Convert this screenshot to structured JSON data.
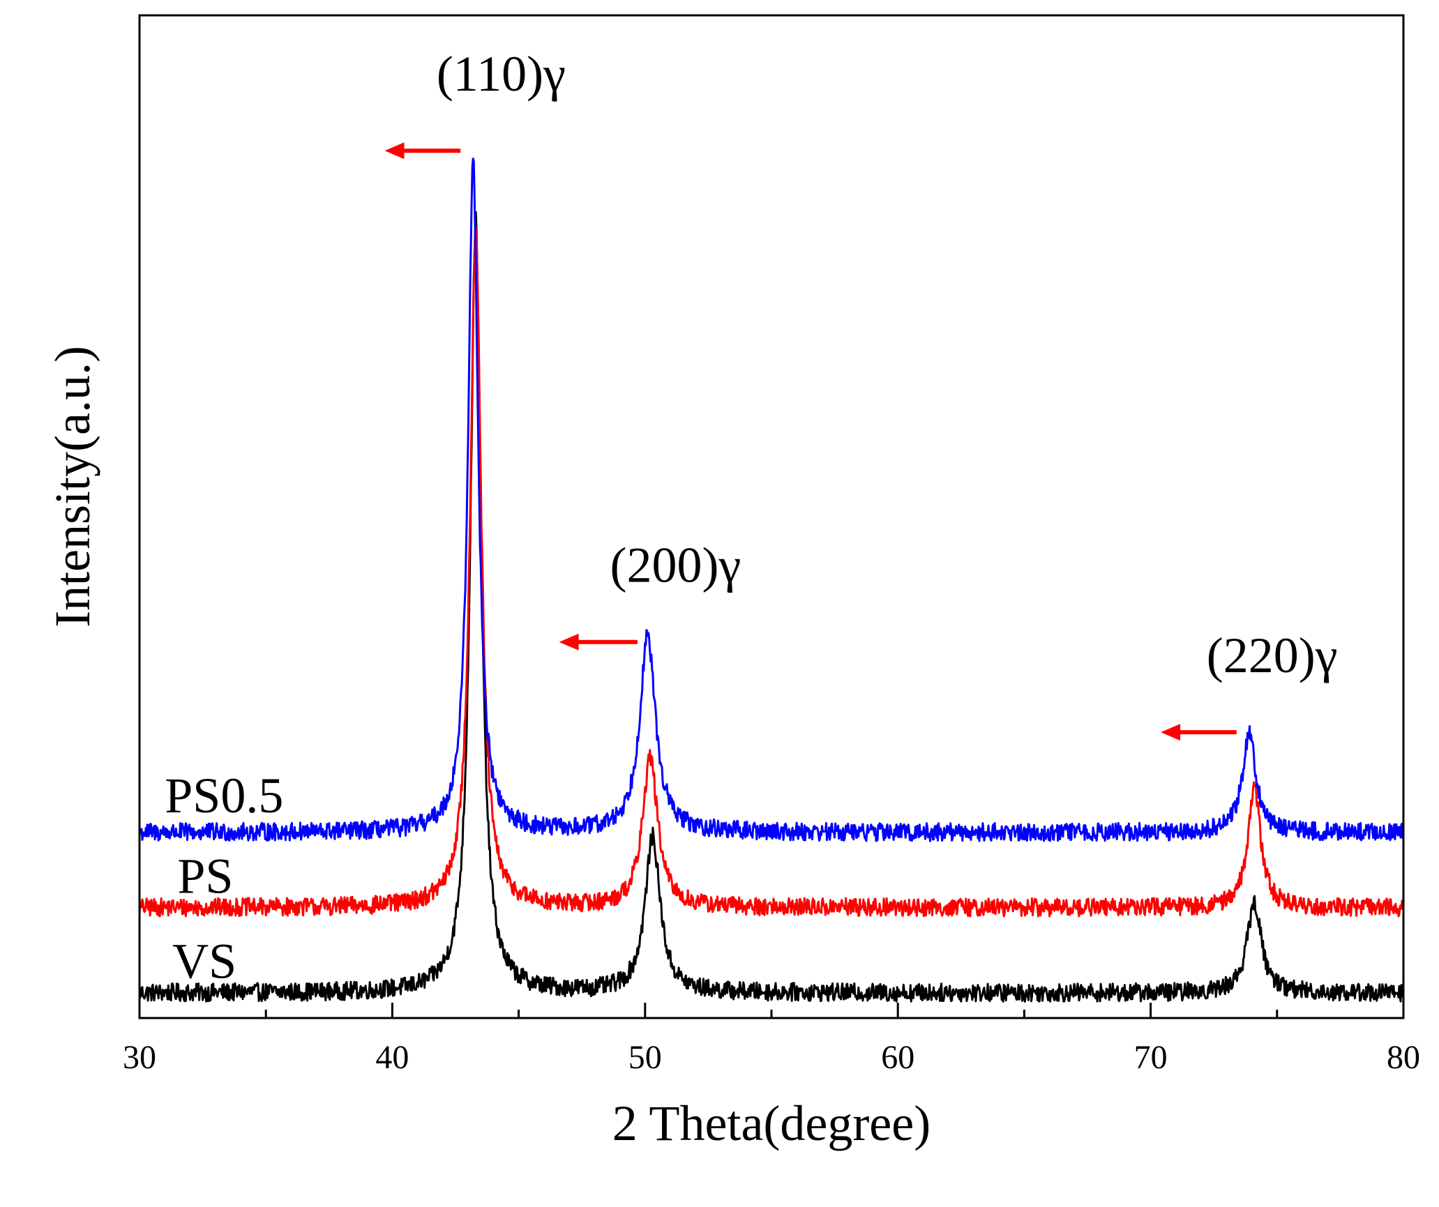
{
  "chart_data": {
    "type": "line",
    "title": "",
    "xlabel": "2 Theta(degree)",
    "ylabel": "Intensity(a.u.)",
    "xlim": [
      30,
      80
    ],
    "ylim": [
      0,
      100
    ],
    "x_ticks": [
      30,
      40,
      50,
      60,
      70,
      80
    ],
    "x_tick_labels": [
      "30",
      "40",
      "50",
      "60",
      "70",
      "80"
    ],
    "x_minor_ticks": [
      35,
      45,
      55,
      65,
      75
    ],
    "grid": false,
    "legend": "none",
    "series": [
      {
        "name": "VS",
        "label": "VS",
        "color": "#000000",
        "baseline": 2.5,
        "noise": 0.9,
        "peaks": [
          {
            "x": 43.3,
            "height": 77.0,
            "width": 0.26
          },
          {
            "x": 50.3,
            "height": 15.5,
            "width": 0.36
          },
          {
            "x": 74.1,
            "height": 9.0,
            "width": 0.34
          }
        ]
      },
      {
        "name": "PS",
        "label": "PS",
        "color": "#ff0000",
        "baseline": 11.0,
        "noise": 0.9,
        "peaks": [
          {
            "x": 43.3,
            "height": 68.0,
            "width": 0.26
          },
          {
            "x": 50.2,
            "height": 15.0,
            "width": 0.36
          },
          {
            "x": 74.1,
            "height": 12.2,
            "width": 0.3
          }
        ]
      },
      {
        "name": "PS0.5",
        "label": "PS0.5",
        "color": "#0000ff",
        "baseline": 18.5,
        "noise": 0.9,
        "peaks": [
          {
            "x": 43.2,
            "height": 67.0,
            "width": 0.24
          },
          {
            "x": 50.1,
            "height": 19.5,
            "width": 0.38
          },
          {
            "x": 73.9,
            "height": 10.0,
            "width": 0.32
          }
        ]
      }
    ],
    "annotations": [
      {
        "text": "(110)γ",
        "x": 43.2,
        "y": 92.5,
        "arrow_from": 42.7,
        "arrow_to": 39.7,
        "arrow_y": 86.5,
        "color": "#ff0000"
      },
      {
        "text": "(200)γ",
        "x": 50.1,
        "y": 43.5,
        "arrow_from": 49.7,
        "arrow_to": 46.6,
        "arrow_y": 37.5,
        "color": "#ff0000"
      },
      {
        "text": "(220)γ",
        "x": 73.7,
        "y": 34.5,
        "arrow_from": 73.4,
        "arrow_to": 70.4,
        "arrow_y": 28.5,
        "color": "#ff0000"
      }
    ]
  }
}
